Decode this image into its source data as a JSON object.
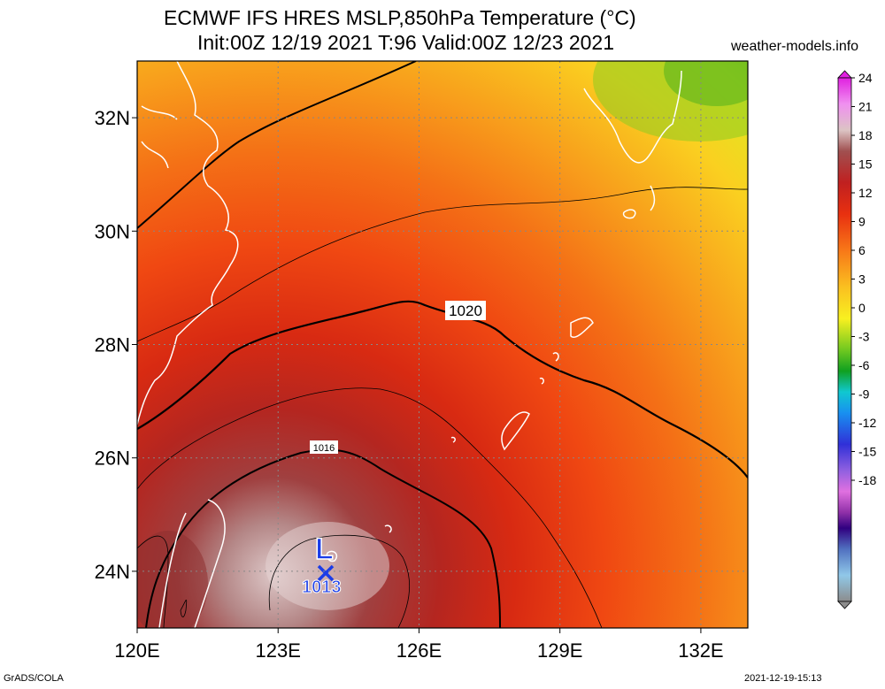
{
  "title_line1": "ECMWF IFS HRES MSLP,850hPa Temperature (°C)",
  "title_line2": "Init:00Z 12/19 2021 T:96 Valid:00Z 12/23 2021",
  "site": "weather-models.info",
  "footer_left": "GrADS/COLA",
  "footer_right": "2021-12-19-15:13",
  "map": {
    "lon_range": [
      120,
      133
    ],
    "lat_range": [
      23,
      33
    ],
    "lon_ticks": [
      {
        "value": 120,
        "label": "120E"
      },
      {
        "value": 123,
        "label": "123E"
      },
      {
        "value": 126,
        "label": "126E"
      },
      {
        "value": 129,
        "label": "129E"
      },
      {
        "value": 132,
        "label": "132E"
      }
    ],
    "lat_ticks": [
      {
        "value": 32,
        "label": "32N"
      },
      {
        "value": 30,
        "label": "30N"
      },
      {
        "value": 28,
        "label": "28N"
      },
      {
        "value": 26,
        "label": "26N"
      },
      {
        "value": 24,
        "label": "24N"
      }
    ],
    "gridlines": "dotted",
    "isobar_labels": [
      {
        "value": "1020",
        "lon": 127.0,
        "lat": 28.5
      },
      {
        "value": "1016",
        "lon": 124.0,
        "lat": 26.2
      }
    ],
    "low_center": {
      "symbol": "L",
      "pressure": "1013",
      "lon": 124.0,
      "lat": 24.0
    }
  },
  "colorbar": {
    "labels": [
      "24",
      "21",
      "18",
      "15",
      "12",
      "9",
      "6",
      "3",
      "0",
      "-3",
      "-6",
      "-9",
      "-12",
      "-15",
      "-18"
    ],
    "colors": [
      "#e020e0",
      "#f070f0",
      "#f4b4f0",
      "#d8c4c4",
      "#b49494",
      "#a04848",
      "#a82424",
      "#c01818",
      "#e02a10",
      "#f05a10",
      "#f88a18",
      "#fac020",
      "#f8f020",
      "#c8e420",
      "#74c820",
      "#20a020",
      "#10c8c0",
      "#10b0f0",
      "#2070f0",
      "#3030d8",
      "#7050e0",
      "#b060e0",
      "#e070e0",
      "#c050c0",
      "#8030a0",
      "#300080",
      "#5060b0",
      "#70a0d0",
      "#90c0e0",
      "#a0b0c0",
      "#909090"
    ]
  }
}
